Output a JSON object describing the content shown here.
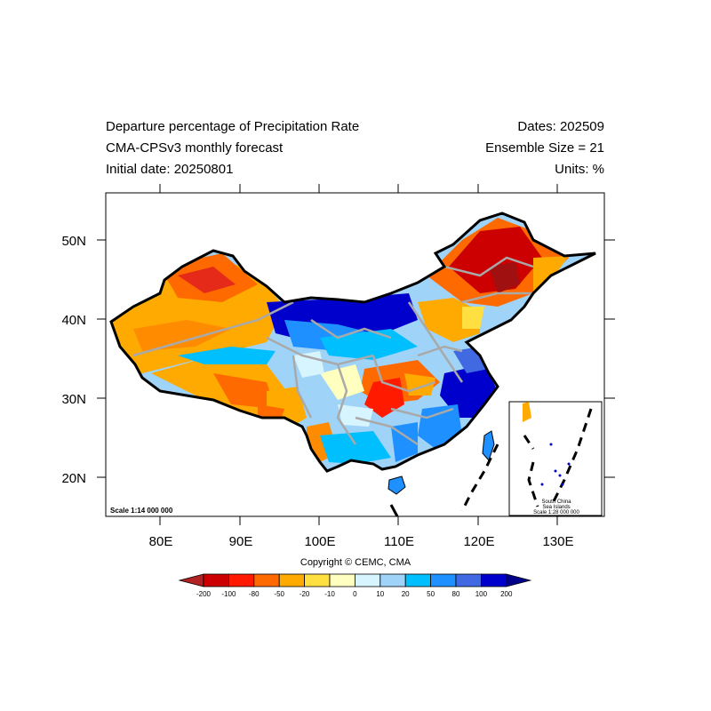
{
  "header": {
    "title": "Departure percentage of Precipitation Rate",
    "subtitle": "CMA-CPSv3 monthly forecast",
    "initial_date": "Initial date: 20250801",
    "dates": "Dates: 202509",
    "ensemble": "Ensemble Size = 21",
    "units": "Units: %"
  },
  "map": {
    "lat_labels": [
      "50N",
      "40N",
      "30N",
      "20N"
    ],
    "lon_labels": [
      "80E",
      "90E",
      "100E",
      "110E",
      "120E",
      "130E"
    ],
    "scale_main": "Scale 1:14 000 000",
    "inset_lines": [
      "South China",
      "Sea Islands",
      "Scale 1:28 000 000"
    ]
  },
  "copyright": "Copyright © CEMC, CMA",
  "legend": {
    "labels": [
      "-200",
      "-100",
      "-80",
      "-50",
      "-20",
      "-10",
      "0",
      "10",
      "20",
      "50",
      "80",
      "100",
      "200"
    ],
    "colors": [
      "#b22222",
      "#cc0000",
      "#ff1a00",
      "#ff6a00",
      "#ffaa00",
      "#ffe040",
      "#ffffc0",
      "#d6f5ff",
      "#9fd3f7",
      "#00bfff",
      "#1e90ff",
      "#4169e1",
      "#0000cd",
      "#00008b"
    ]
  },
  "colors": {
    "dry_strong": "#cc0000",
    "dry": "#ff6a00",
    "dry_weak": "#ffaa00",
    "wet_weak": "#9fd3f7",
    "wet": "#1e90ff",
    "wet_strong": "#0000cd",
    "province_lines": "#a9a9a9"
  }
}
